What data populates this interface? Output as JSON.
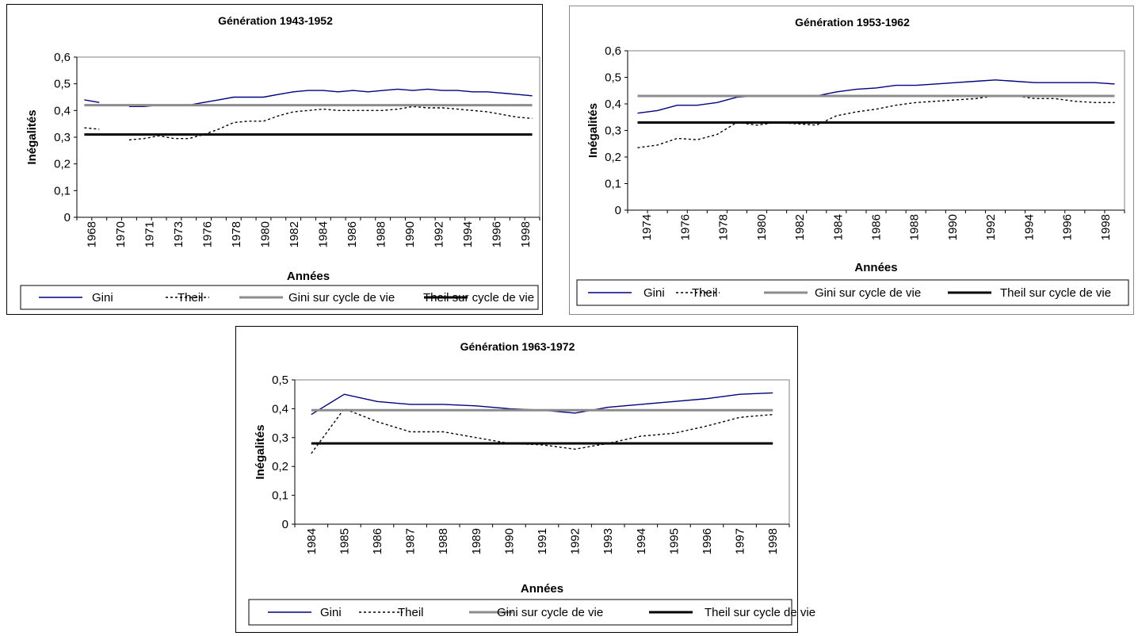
{
  "chart_data": [
    {
      "type": "line",
      "title": "Génération 1943-1952",
      "xlabel": "Années",
      "ylabel": "Inégalités",
      "ylim": [
        0,
        0.6
      ],
      "yticks": [
        "0",
        "0,1",
        "0,2",
        "0,3",
        "0,4",
        "0,5",
        "0,6"
      ],
      "categories": [
        "1968",
        "1969",
        "1970",
        "1971",
        "1972",
        "1973",
        "1974",
        "1975",
        "1976",
        "1977",
        "1978",
        "1979",
        "1980",
        "1981",
        "1982",
        "1983",
        "1984",
        "1985",
        "1986",
        "1987",
        "1988",
        "1989",
        "1990",
        "1991",
        "1992",
        "1993",
        "1994",
        "1995",
        "1996",
        "1997",
        "1998"
      ],
      "category_tick_labels": [
        "1968",
        "1970",
        "1971",
        "1973",
        "1976",
        "1978",
        "1980",
        "1982",
        "1984",
        "1986",
        "1988",
        "1990",
        "1992",
        "1994",
        "1996",
        "1998"
      ],
      "grid": false,
      "legend_position": "bottom",
      "series": [
        {
          "name": "Gini",
          "color": "#000080",
          "style": "solid",
          "values": [
            0.44,
            0.43,
            null,
            0.415,
            0.415,
            0.42,
            0.42,
            0.42,
            0.43,
            0.44,
            0.45,
            0.45,
            0.45,
            0.46,
            0.47,
            0.475,
            0.475,
            0.47,
            0.475,
            0.47,
            0.475,
            0.48,
            0.475,
            0.48,
            0.475,
            0.475,
            0.47,
            0.47,
            0.465,
            0.46,
            0.455
          ]
        },
        {
          "name": "Theil",
          "color": "#000000",
          "style": "dotted",
          "values": [
            0.335,
            0.33,
            null,
            0.29,
            0.295,
            0.305,
            0.295,
            0.295,
            0.31,
            0.33,
            0.355,
            0.36,
            0.36,
            0.38,
            0.395,
            0.4,
            0.405,
            0.4,
            0.4,
            0.4,
            0.4,
            0.405,
            0.415,
            0.41,
            0.41,
            0.405,
            0.4,
            0.395,
            0.385,
            0.375,
            0.37
          ]
        },
        {
          "name": "Gini sur cycle de vie",
          "color": "#8c8c8c",
          "style": "thick",
          "constant": 0.42
        },
        {
          "name": "Theil sur cycle de vie",
          "color": "#000000",
          "style": "thick",
          "constant": 0.31
        }
      ]
    },
    {
      "type": "line",
      "title": "Génération 1953-1962",
      "xlabel": "Années",
      "ylabel": "Inégalités",
      "ylim": [
        0,
        0.6
      ],
      "yticks": [
        "0",
        "0,1",
        "0,2",
        "0,3",
        "0,4",
        "0,5",
        "0,6"
      ],
      "categories": [
        "1974",
        "1975",
        "1976",
        "1977",
        "1978",
        "1979",
        "1980",
        "1981",
        "1982",
        "1983",
        "1984",
        "1985",
        "1986",
        "1987",
        "1988",
        "1989",
        "1990",
        "1991",
        "1992",
        "1993",
        "1994",
        "1995",
        "1996",
        "1997",
        "1998"
      ],
      "category_tick_labels": [
        "1974",
        "1976",
        "1978",
        "1980",
        "1982",
        "1984",
        "1986",
        "1988",
        "1990",
        "1992",
        "1994",
        "1996",
        "1998"
      ],
      "grid": false,
      "legend_position": "bottom",
      "series": [
        {
          "name": "Gini",
          "color": "#000080",
          "style": "solid",
          "values": [
            0.365,
            0.375,
            0.395,
            0.395,
            0.405,
            0.425,
            0.43,
            0.43,
            0.43,
            0.43,
            0.445,
            0.455,
            0.46,
            0.47,
            0.47,
            0.475,
            0.48,
            0.485,
            0.49,
            0.485,
            0.48,
            0.48,
            0.48,
            0.48,
            0.475
          ]
        },
        {
          "name": "Theil",
          "color": "#000000",
          "style": "dotted",
          "values": [
            0.235,
            0.245,
            0.27,
            0.265,
            0.285,
            0.33,
            0.32,
            0.33,
            0.325,
            0.32,
            0.355,
            0.37,
            0.38,
            0.395,
            0.405,
            0.41,
            0.415,
            0.42,
            0.43,
            0.43,
            0.42,
            0.42,
            0.41,
            0.405,
            0.405
          ]
        },
        {
          "name": "Gini sur cycle de vie",
          "color": "#8c8c8c",
          "style": "thick",
          "constant": 0.43
        },
        {
          "name": "Theil sur cycle de vie",
          "color": "#000000",
          "style": "thick",
          "constant": 0.33
        }
      ]
    },
    {
      "type": "line",
      "title": "Génération 1963-1972",
      "xlabel": "Années",
      "ylabel": "Inégalités",
      "ylim": [
        0,
        0.5
      ],
      "yticks": [
        "0",
        "0,1",
        "0,2",
        "0,3",
        "0,4",
        "0,5"
      ],
      "categories": [
        "1984",
        "1985",
        "1986",
        "1987",
        "1988",
        "1989",
        "1990",
        "1991",
        "1992",
        "1993",
        "1994",
        "1995",
        "1996",
        "1997",
        "1998"
      ],
      "category_tick_labels": [
        "1984",
        "1985",
        "1986",
        "1987",
        "1988",
        "1989",
        "1990",
        "1991",
        "1992",
        "1993",
        "1994",
        "1995",
        "1996",
        "1997",
        "1998"
      ],
      "grid": false,
      "legend_position": "bottom",
      "series": [
        {
          "name": "Gini",
          "color": "#000080",
          "style": "solid",
          "values": [
            0.38,
            0.45,
            0.425,
            0.415,
            0.415,
            0.41,
            0.4,
            0.395,
            0.385,
            0.405,
            0.415,
            0.425,
            0.435,
            0.45,
            0.455
          ]
        },
        {
          "name": "Theil",
          "color": "#000000",
          "style": "dotted",
          "values": [
            0.245,
            0.4,
            0.355,
            0.32,
            0.32,
            0.3,
            0.28,
            0.275,
            0.26,
            0.28,
            0.305,
            0.315,
            0.34,
            0.37,
            0.38
          ]
        },
        {
          "name": "Gini sur cycle de vie",
          "color": "#8c8c8c",
          "style": "thick",
          "constant": 0.395
        },
        {
          "name": "Theil sur cycle de vie",
          "color": "#000000",
          "style": "thick",
          "constant": 0.28
        }
      ]
    }
  ]
}
